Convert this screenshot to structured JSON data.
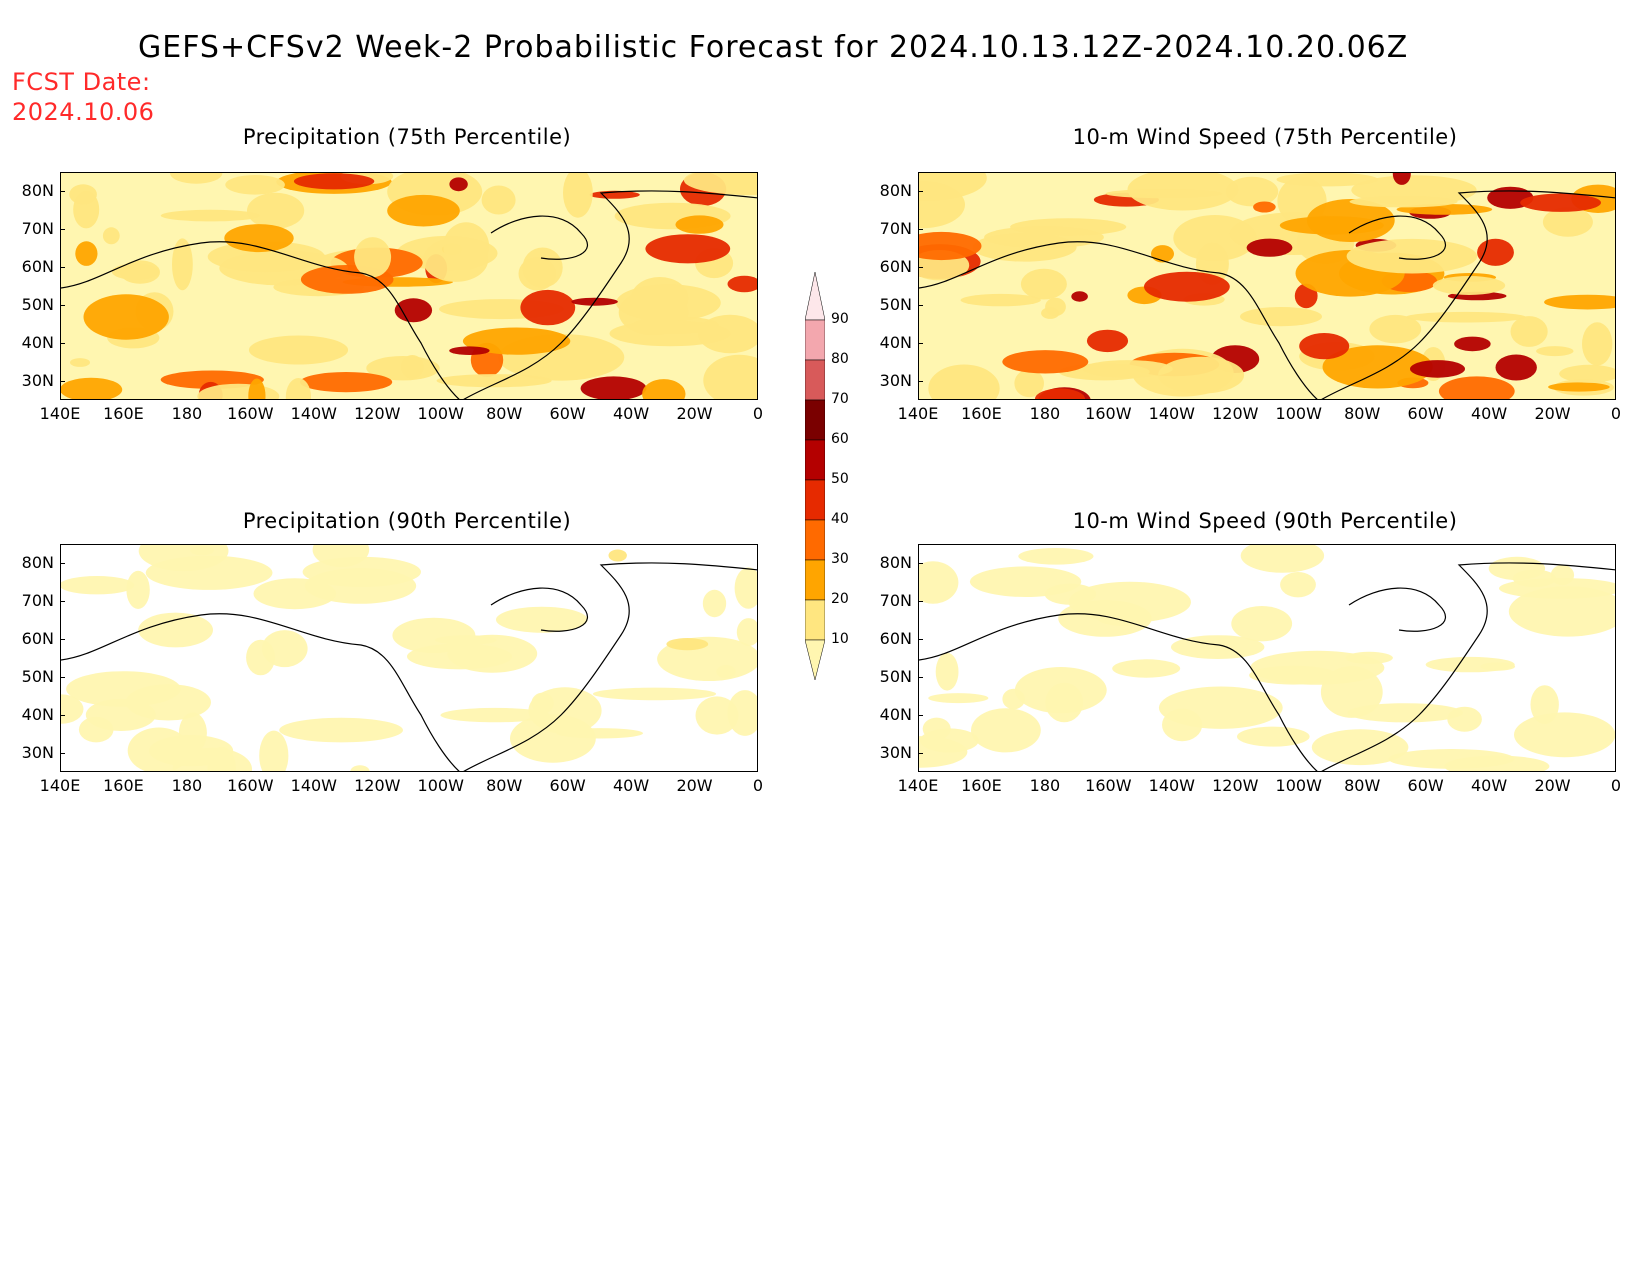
{
  "title": "GEFS+CFSv2 Week-2 Probabilistic Forecast for 2024.10.13.12Z-2024.10.20.06Z",
  "forecast_date": {
    "label": "FCST Date:",
    "value": "2024.10.06"
  },
  "lat_ticks": [
    "80N",
    "70N",
    "60N",
    "50N",
    "40N",
    "30N"
  ],
  "lon_ticks": [
    "140E",
    "160E",
    "180",
    "160W",
    "140W",
    "120W",
    "100W",
    "80W",
    "60W",
    "40W",
    "20W",
    "0"
  ],
  "panels": [
    {
      "id": "precip75",
      "title": "Precipitation (75th Percentile)",
      "intensity": 0.75
    },
    {
      "id": "wind75",
      "title": "10-m Wind Speed (75th Percentile)",
      "intensity": 0.85
    },
    {
      "id": "precip90",
      "title": "Precipitation (90th Percentile)",
      "intensity": 0.25
    },
    {
      "id": "wind90",
      "title": "10-m Wind Speed (90th Percentile)",
      "intensity": 0.2
    }
  ],
  "colorbar": {
    "levels": [
      "10",
      "20",
      "30",
      "40",
      "50",
      "60",
      "70",
      "80",
      "90"
    ],
    "colors": [
      "#fff6b0",
      "#ffe680",
      "#ffa500",
      "#ff6a00",
      "#e62a00",
      "#b40000",
      "#7a0000",
      "#d85a5a",
      "#f3a7ae",
      "#fde7ea"
    ]
  }
}
